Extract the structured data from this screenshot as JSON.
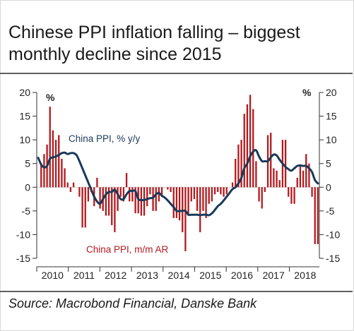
{
  "title": "Chinese PPI inflation falling – biggest monthly decline since 2015",
  "source": "Source: Macrobond Financial, Danske Bank",
  "chart_data": {
    "type": "bar+line",
    "title": "Chinese PPI inflation falling – biggest monthly decline since 2015",
    "left_unit": "%",
    "right_unit": "%",
    "ylim": [
      -15,
      20
    ],
    "y_ticks": [
      20,
      15,
      10,
      5,
      0,
      -5,
      -10,
      -15
    ],
    "x_ticks": [
      "2010",
      "2011",
      "2012",
      "2013",
      "2014",
      "2015",
      "2016",
      "2017",
      "2018"
    ],
    "x_start_year": 2010,
    "x_end_year": 2018.95,
    "colors": {
      "bars": "#b4191e",
      "line": "#183a5a",
      "axis": "#333333"
    },
    "series": [
      {
        "name": "China PPI, m/m AR",
        "kind": "bar",
        "label_color": "#b4191e",
        "values": [
          0,
          5,
          7,
          9,
          17,
          12,
          10,
          11,
          6,
          4,
          1,
          -1,
          1,
          0,
          -2,
          -8.5,
          -8.5,
          -3,
          -1,
          -4,
          2,
          -4.5,
          -5,
          -6,
          -6,
          -8,
          -9.5,
          -5,
          -2,
          -3,
          3,
          -3,
          -3,
          -5.5,
          -5.5,
          -6,
          -6,
          -4,
          -1.5,
          -5,
          -5,
          -3,
          -2,
          0,
          -0.5,
          -1,
          -6.5,
          -6.5,
          -7,
          -9.5,
          -13.5,
          -6,
          -3,
          -2.5,
          -5,
          -9.5,
          -5,
          -6.5,
          -3.5,
          -3,
          -1.5,
          -1,
          -1.5,
          -2,
          -1.5,
          0,
          1,
          6,
          9,
          10,
          15.5,
          17.5,
          19.5,
          16.5,
          5.5,
          -3,
          -4.5,
          -1,
          11,
          11.5,
          4,
          3.5,
          1.5,
          10,
          10,
          -2,
          -3.5,
          -3.5,
          2,
          4.5,
          3.5,
          7,
          5,
          -2,
          -12,
          -12
        ]
      },
      {
        "name": "China PPI, % y/y",
        "kind": "line",
        "label_color": "#183a5a",
        "values": [
          6.2,
          4.8,
          4.2,
          4.5,
          6,
          6.3,
          6.5,
          6.8,
          7.2,
          7.3,
          7,
          7.2,
          7.2,
          6.8,
          5.5,
          4,
          2.5,
          1,
          -0.5,
          -2,
          -3,
          -3.5,
          -2.5,
          -1.5,
          -1,
          -1,
          -0.5,
          -1.5,
          -2.5,
          -2.5,
          -1.5,
          -0.8,
          -0.8,
          -0.8,
          -2.5,
          -2.7,
          -2.7,
          -2.5,
          -2.3,
          -2.2,
          -1.5,
          -1.2,
          -1.8,
          -2.2,
          -2.8,
          -3.5,
          -4.2,
          -5,
          -5,
          -5,
          -5,
          -5.8,
          -5.8,
          -5.8,
          -5.8,
          -5.9,
          -5.8,
          -5.8,
          -5.9,
          -5.5,
          -4.8,
          -4,
          -3.5,
          -2.8,
          -2,
          -1.2,
          -0.4,
          0,
          0.8,
          2,
          4,
          5,
          6.5,
          7.5,
          7.8,
          6.5,
          5.5,
          5.5,
          5.5,
          6.3,
          6.9,
          6.7,
          5.8,
          5,
          4.3,
          3.8,
          3.5,
          4,
          4.5,
          4.6,
          4.5,
          4.5,
          4.0,
          3.2,
          1.5,
          0.8
        ]
      }
    ]
  }
}
